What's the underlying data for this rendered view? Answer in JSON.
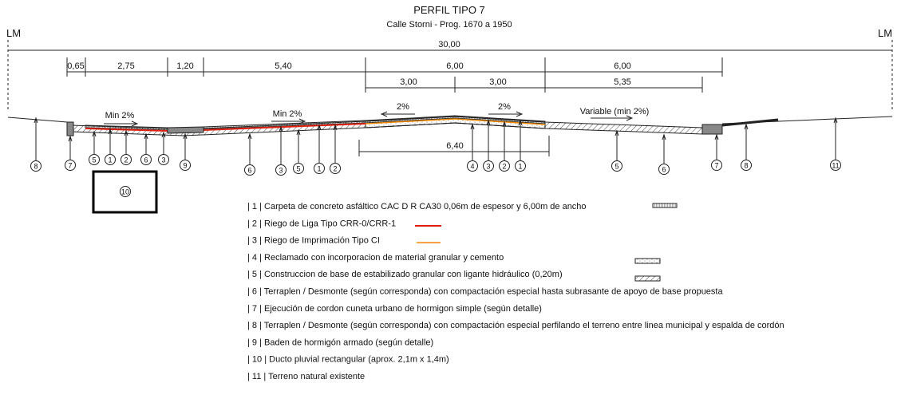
{
  "header": {
    "title": "PERFIL TIPO 7",
    "subtitle": "Calle Storni - Prog. 1670 a 1950"
  },
  "limits": {
    "left": "LM",
    "right": "LM"
  },
  "dimensions": {
    "total": "30,00",
    "row1": [
      "0,65",
      "2,75",
      "1,20",
      "5,40",
      "6,00",
      "6,00"
    ],
    "row2": [
      "3,00",
      "3,00",
      "5,35"
    ],
    "lower": "6,40"
  },
  "slopes": [
    "Min 2%",
    "Min 2%",
    "2%",
    "2%",
    "Variable (min 2%)"
  ],
  "callouts": [
    "8",
    "7",
    "5",
    "1",
    "2",
    "6",
    "3",
    "9",
    "6",
    "3",
    "5",
    "1",
    "2",
    "4",
    "3",
    "2",
    "1",
    "5",
    "6",
    "7",
    "8",
    "11",
    "10"
  ],
  "legend": [
    "| 1 | Carpeta de concreto asfáltico CAC D R CA30 0,06m de espesor y 6,00m de ancho",
    "| 2 | Riego de Liga Tipo CRR-0/CRR-1",
    "| 3 | Riego de Imprimación Tipo CI",
    "| 4 | Reclamado con incorporacion de material granular y cemento",
    "| 5 | Construccion de base de estabilizado granular con ligante hidráulico (0,20m)",
    "| 6 | Terraplen / Desmonte (según corresponda)  con compactación especial hasta subrasante de apoyo de base propuesta",
    "| 7 | Ejecución de cordon cuneta urbano de hormigon simple (según detalle)",
    "| 8 | Terraplen / Desmonte (según corresponda) con compactación especial perfilando el terreno entre linea municipal y espalda de cordón",
    "| 9 | Baden de hormigón armado (según detalle)",
    "| 10 | Ducto pluvial rectangular (aprox. 2,1m x 1,4m)",
    "| 11 | Terreno natural existente"
  ]
}
